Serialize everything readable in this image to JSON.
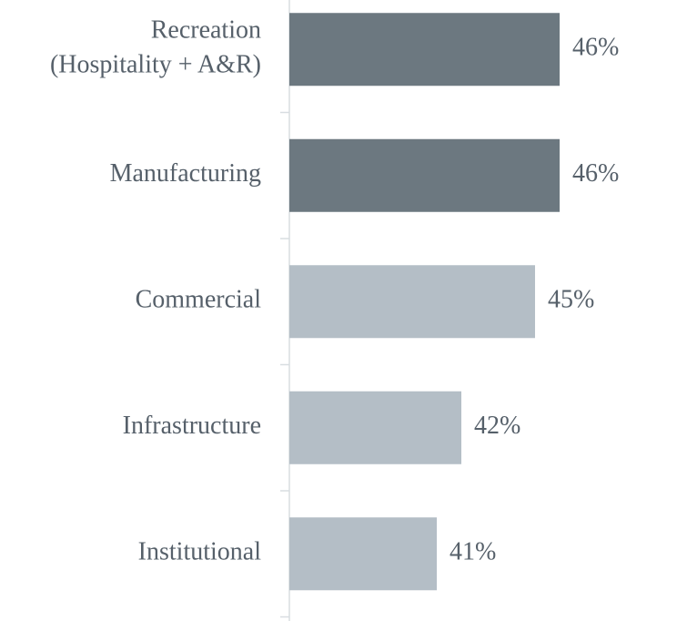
{
  "chart_data": {
    "type": "bar",
    "orientation": "horizontal",
    "categories": [
      "Recreation\n(Hospitality + A&R)",
      "Manufacturing",
      "Commercial",
      "Infrastructure",
      "Institutional"
    ],
    "values": [
      46,
      46,
      45,
      42,
      41
    ],
    "value_labels": [
      "46%",
      "46%",
      "45%",
      "42%",
      "41%"
    ],
    "colors": [
      "#6c7880",
      "#6c7880",
      "#b4bec6",
      "#b4bec6",
      "#b4bec6"
    ],
    "xlim": [
      35,
      50
    ]
  }
}
